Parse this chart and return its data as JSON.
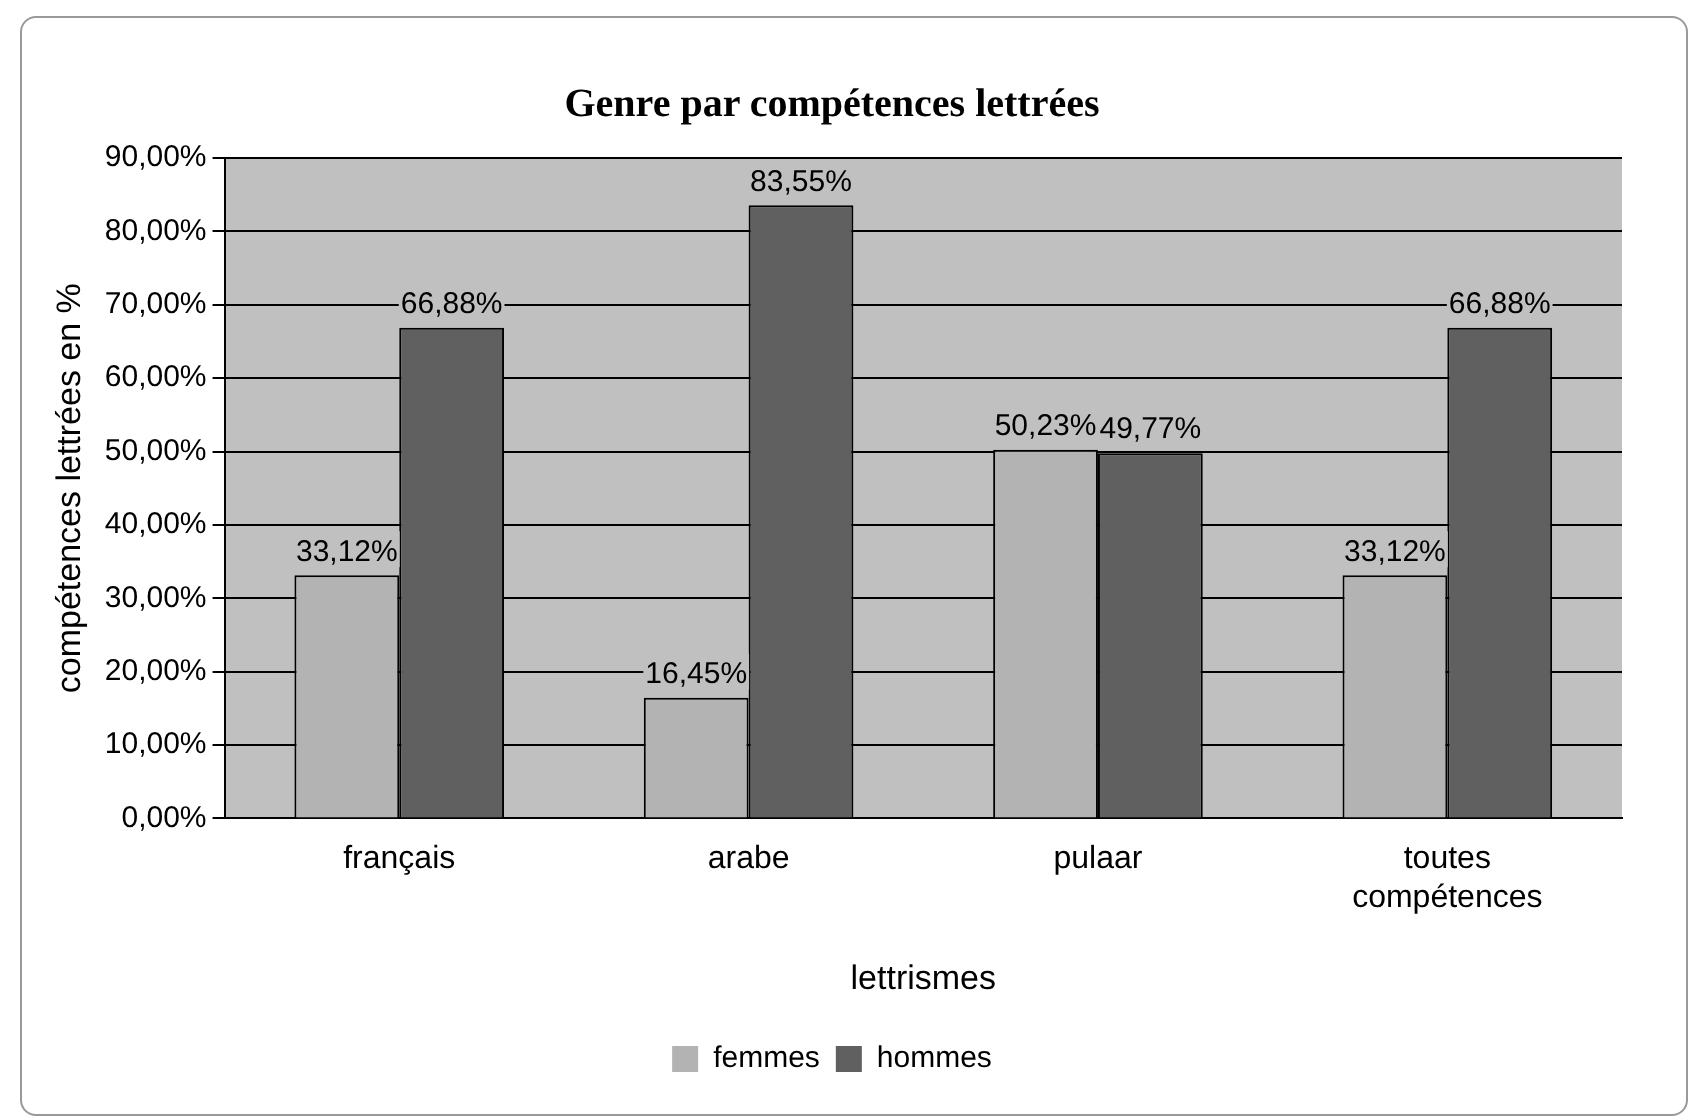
{
  "chart_data": {
    "type": "bar",
    "title": "Genre par compétences lettrées",
    "xlabel": "lettrismes",
    "ylabel": "compétences lettrées en %",
    "categories": [
      "français",
      "arabe",
      "pulaar",
      "toutes compétences"
    ],
    "series": [
      {
        "name": "femmes",
        "color": "#b3b3b3",
        "values": [
          33.12,
          16.45,
          50.23,
          33.12
        ],
        "value_labels": [
          "33,12%",
          "16,45%",
          "50,23%",
          "33,12%"
        ]
      },
      {
        "name": "hommes",
        "color": "#606060",
        "values": [
          66.88,
          83.55,
          49.77,
          66.88
        ],
        "value_labels": [
          "66,88%",
          "83,55%",
          "49,77%",
          "66,88%"
        ]
      }
    ],
    "ylim": [
      0,
      90
    ],
    "yticks": [
      {
        "value": 0,
        "label": "0,00%"
      },
      {
        "value": 10,
        "label": "10,00%"
      },
      {
        "value": 20,
        "label": "20,00%"
      },
      {
        "value": 30,
        "label": "30,00%"
      },
      {
        "value": 40,
        "label": "40,00%"
      },
      {
        "value": 50,
        "label": "50,00%"
      },
      {
        "value": 60,
        "label": "60,00%"
      },
      {
        "value": 70,
        "label": "70,00%"
      },
      {
        "value": 80,
        "label": "80,00%"
      },
      {
        "value": 90,
        "label": "90,00%"
      }
    ],
    "grid": "y",
    "legend": "bottom"
  }
}
